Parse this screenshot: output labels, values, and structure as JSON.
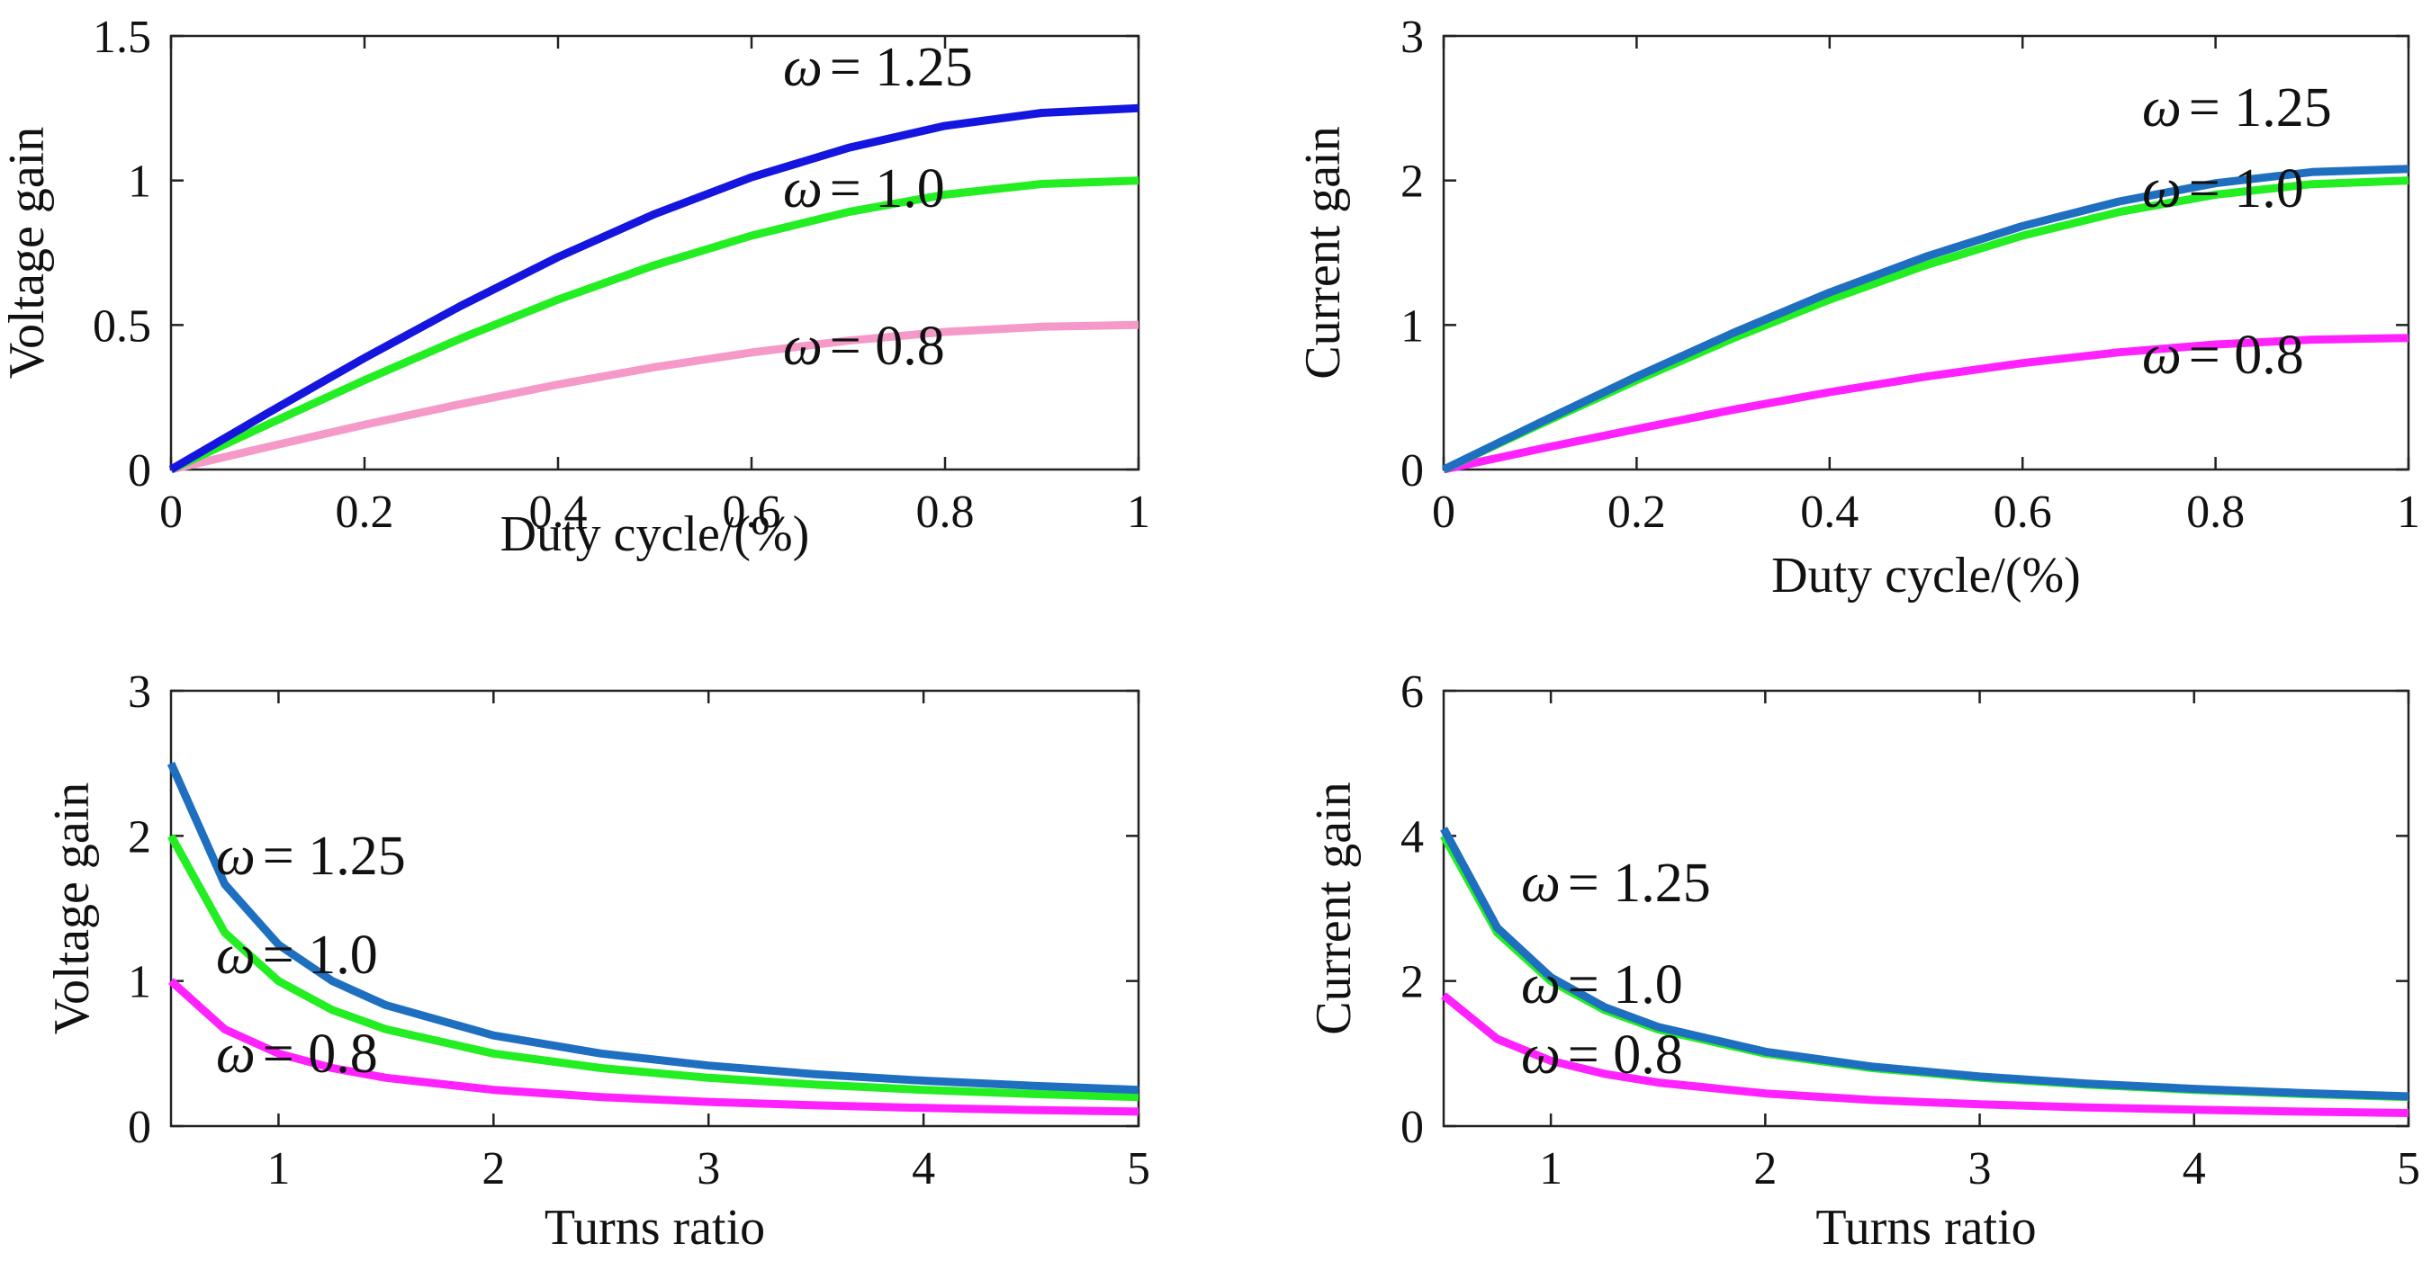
{
  "chart_data": [
    {
      "id": "voltage-gain-vs-duty",
      "type": "line",
      "title": "",
      "xlabel": "Duty cycle/(%)",
      "ylabel": "Voltage gain",
      "xlim": [
        0,
        1
      ],
      "ylim": [
        0,
        1.5
      ],
      "xticks": [
        0,
        0.2,
        0.4,
        0.6,
        0.8,
        1
      ],
      "yticks": [
        0,
        0.5,
        1,
        1.5
      ],
      "x": [
        0,
        0.1,
        0.2,
        0.3,
        0.4,
        0.5,
        0.6,
        0.7,
        0.8,
        0.9,
        1.0
      ],
      "series": [
        {
          "name": "ω = 1.25",
          "color": "#1515e0",
          "values": [
            0,
            0.195,
            0.386,
            0.567,
            0.735,
            0.884,
            1.011,
            1.113,
            1.189,
            1.234,
            1.25
          ]
        },
        {
          "name": "ω = 1.0",
          "color": "#22ee22",
          "values": [
            0,
            0.156,
            0.309,
            0.454,
            0.588,
            0.707,
            0.809,
            0.891,
            0.951,
            0.988,
            1.0
          ]
        },
        {
          "name": "ω = 0.8",
          "color": "#f59ac8",
          "values": [
            0,
            0.078,
            0.155,
            0.227,
            0.294,
            0.354,
            0.405,
            0.446,
            0.476,
            0.494,
            0.5
          ]
        }
      ],
      "annotations": [
        {
          "omega": "ω",
          "text": "= 1.25"
        },
        {
          "omega": "ω",
          "text": "= 1.0"
        },
        {
          "omega": "ω",
          "text": "= 0.8"
        }
      ]
    },
    {
      "id": "current-gain-vs-duty",
      "type": "line",
      "title": "",
      "xlabel": "Duty cycle/(%)",
      "ylabel": "Current gain",
      "xlim": [
        0,
        1
      ],
      "ylim": [
        0,
        3
      ],
      "xticks": [
        0,
        0.2,
        0.4,
        0.6,
        0.8,
        1
      ],
      "yticks": [
        0,
        1,
        2,
        3
      ],
      "x": [
        0,
        0.1,
        0.2,
        0.3,
        0.4,
        0.5,
        0.6,
        0.7,
        0.8,
        0.9,
        1.0
      ],
      "series": [
        {
          "name": "ω = 1.25",
          "color": "#1f6fc0",
          "values": [
            0,
            0.325,
            0.643,
            0.945,
            1.225,
            1.473,
            1.685,
            1.855,
            1.981,
            2.058,
            2.08
          ]
        },
        {
          "name": "ω = 1.0",
          "color": "#22ee22",
          "values": [
            0,
            0.313,
            0.618,
            0.908,
            1.176,
            1.414,
            1.618,
            1.782,
            1.902,
            1.975,
            2.0
          ]
        },
        {
          "name": "ω = 0.8",
          "color": "#ff22ff",
          "values": [
            0,
            0.143,
            0.28,
            0.413,
            0.535,
            0.643,
            0.736,
            0.811,
            0.865,
            0.899,
            0.91
          ]
        }
      ],
      "annotations": [
        {
          "omega": "ω",
          "text": "= 1.25"
        },
        {
          "omega": "ω",
          "text": "= 1.0"
        },
        {
          "omega": "ω",
          "text": "= 0.8"
        }
      ]
    },
    {
      "id": "voltage-gain-vs-turns",
      "type": "line",
      "title": "",
      "xlabel": "Turns ratio",
      "ylabel": "Voltage gain",
      "xlim": [
        0.5,
        5
      ],
      "ylim": [
        0,
        3
      ],
      "xticks": [
        1,
        2,
        3,
        4,
        5
      ],
      "yticks": [
        0,
        1,
        2,
        3
      ],
      "x": [
        0.5,
        0.75,
        1,
        1.25,
        1.5,
        2,
        2.5,
        3,
        3.5,
        4,
        4.5,
        5
      ],
      "series": [
        {
          "name": "ω = 1.25",
          "color": "#1f6fc0",
          "values": [
            2.5,
            1.667,
            1.25,
            1.0,
            0.833,
            0.625,
            0.5,
            0.417,
            0.357,
            0.313,
            0.278,
            0.25
          ]
        },
        {
          "name": "ω = 1.0",
          "color": "#22ee22",
          "values": [
            2.0,
            1.333,
            1.0,
            0.8,
            0.667,
            0.5,
            0.4,
            0.333,
            0.286,
            0.25,
            0.222,
            0.2
          ]
        },
        {
          "name": "ω = 0.8",
          "color": "#ff22ff",
          "values": [
            1.0,
            0.667,
            0.5,
            0.4,
            0.333,
            0.25,
            0.2,
            0.167,
            0.143,
            0.125,
            0.111,
            0.1
          ]
        }
      ],
      "annotations": [
        {
          "omega": "ω",
          "text": "= 1.25"
        },
        {
          "omega": "ω",
          "text": "= 1.0"
        },
        {
          "omega": "ω",
          "text": "= 0.8"
        }
      ]
    },
    {
      "id": "current-gain-vs-turns",
      "type": "line",
      "title": "",
      "xlabel": "Turns ratio",
      "ylabel": "Current gain",
      "xlim": [
        0.5,
        5
      ],
      "ylim": [
        0,
        6
      ],
      "xticks": [
        1,
        2,
        3,
        4,
        5
      ],
      "yticks": [
        0,
        2,
        4,
        6
      ],
      "x": [
        0.5,
        0.75,
        1,
        1.25,
        1.5,
        2,
        2.5,
        3,
        3.5,
        4,
        4.5,
        5
      ],
      "series": [
        {
          "name": "ω = 1.25",
          "color": "#1f6fc0",
          "values": [
            4.1,
            2.733,
            2.05,
            1.64,
            1.367,
            1.025,
            0.82,
            0.683,
            0.586,
            0.513,
            0.456,
            0.41
          ]
        },
        {
          "name": "ω = 1.0",
          "color": "#22ee22",
          "values": [
            4.0,
            2.667,
            2.0,
            1.6,
            1.333,
            1.0,
            0.8,
            0.667,
            0.571,
            0.5,
            0.444,
            0.4
          ]
        },
        {
          "name": "ω = 0.8",
          "color": "#ff22ff",
          "values": [
            1.8,
            1.2,
            0.9,
            0.72,
            0.6,
            0.45,
            0.36,
            0.3,
            0.257,
            0.225,
            0.2,
            0.18
          ]
        }
      ],
      "annotations": [
        {
          "omega": "ω",
          "text": "= 1.25"
        },
        {
          "omega": "ω",
          "text": "= 1.0"
        },
        {
          "omega": "ω",
          "text": "= 0.8"
        }
      ]
    }
  ]
}
